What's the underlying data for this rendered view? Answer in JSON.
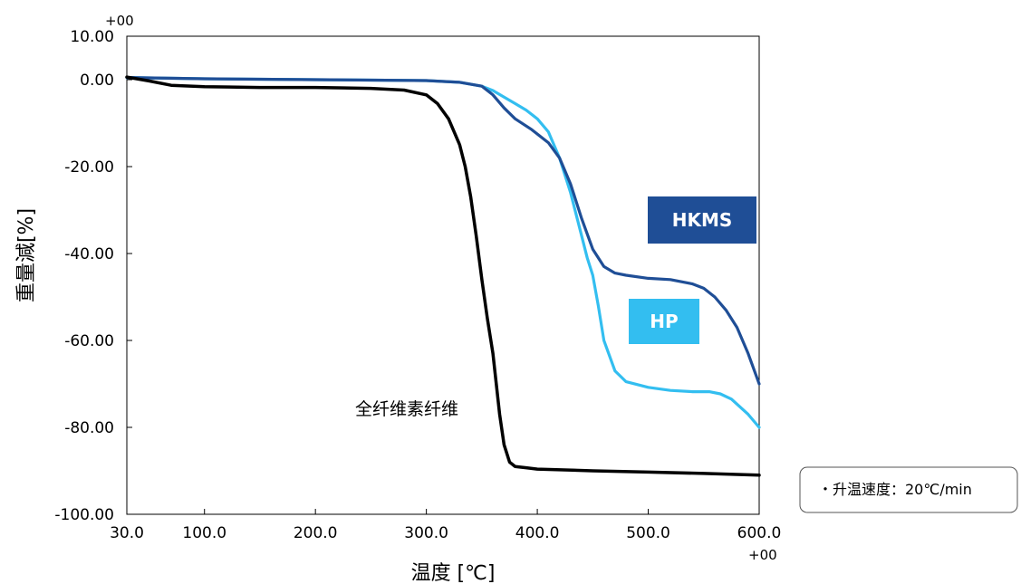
{
  "chart_data": {
    "type": "line",
    "xlabel": "温度 [℃]",
    "ylabel": "重量減[%]",
    "xlim": [
      30,
      600
    ],
    "ylim": [
      -100,
      10
    ],
    "x_ticks": [
      "30.0",
      "100.0",
      "200.0",
      "300.0",
      "400.0",
      "500.0",
      "600.0"
    ],
    "x_tick_values": [
      30,
      100,
      200,
      300,
      400,
      500,
      600
    ],
    "x_tick_exponent": "+00",
    "y_ticks": [
      "10.00",
      "0.00",
      "-20.00",
      "-40.00",
      "-60.00",
      "-80.00",
      "-100.00"
    ],
    "y_tick_values": [
      10,
      0,
      -20,
      -40,
      -60,
      -80,
      -100
    ],
    "y_tick_exponent": "+00",
    "grid": false,
    "annotation": "全纤维素纤维",
    "note": "・升温速度：20℃/min",
    "series": [
      {
        "name": "全纤维素纤维",
        "color": "#000000",
        "x": [
          30,
          50,
          70,
          100,
          150,
          200,
          250,
          280,
          300,
          310,
          320,
          330,
          335,
          340,
          345,
          350,
          355,
          360,
          363,
          366,
          370,
          375,
          380,
          390,
          400,
          450,
          500,
          550,
          600
        ],
        "y": [
          0.6,
          -0.3,
          -1.3,
          -1.6,
          -1.8,
          -1.8,
          -2.0,
          -2.4,
          -3.5,
          -5.5,
          -9.0,
          -15.0,
          -20.0,
          -27.0,
          -36.0,
          -46.0,
          -55.0,
          -63.0,
          -70.0,
          -77.0,
          -84.0,
          -88.0,
          -89.0,
          -89.3,
          -89.6,
          -90.0,
          -90.3,
          -90.6,
          -91.0
        ]
      },
      {
        "name": "HKMS",
        "color": "#1f4e96",
        "x": [
          30,
          100,
          200,
          300,
          330,
          350,
          360,
          370,
          380,
          395,
          410,
          420,
          430,
          440,
          450,
          460,
          470,
          480,
          500,
          520,
          540,
          550,
          560,
          570,
          580,
          590,
          600
        ],
        "y": [
          0.5,
          0.2,
          0,
          -0.2,
          -0.6,
          -1.5,
          -3.5,
          -6.5,
          -9.0,
          -11.5,
          -14.5,
          -18.0,
          -24.0,
          -32.0,
          -39.0,
          -43.0,
          -44.5,
          -45.0,
          -45.7,
          -46.0,
          -47.0,
          -48.0,
          -50.0,
          -53.0,
          -57.0,
          -63.0,
          -70.0
        ]
      },
      {
        "name": "HP",
        "color": "#33bef0",
        "x": [
          30,
          100,
          200,
          300,
          330,
          350,
          360,
          370,
          380,
          390,
          400,
          410,
          420,
          430,
          440,
          445,
          450,
          455,
          460,
          470,
          480,
          500,
          520,
          540,
          555,
          565,
          575,
          590,
          600
        ],
        "y": [
          0.5,
          0.2,
          0,
          -0.2,
          -0.6,
          -1.5,
          -2.5,
          -4.0,
          -5.5,
          -7.0,
          -9.0,
          -12.0,
          -18.0,
          -26.0,
          -36.0,
          -41.0,
          -45.0,
          -52.0,
          -60.0,
          -67.0,
          -69.5,
          -70.8,
          -71.5,
          -71.8,
          -71.8,
          -72.3,
          -73.5,
          -77.0,
          -80.0
        ]
      }
    ],
    "legend": [
      {
        "label": "HKMS",
        "color": "#1f4e96"
      },
      {
        "label": "HP",
        "color": "#33bef0"
      }
    ]
  }
}
